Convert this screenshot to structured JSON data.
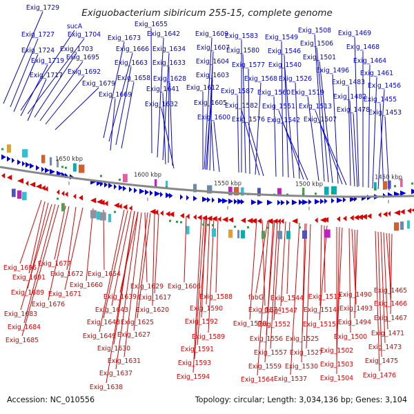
{
  "title": "Exiguobacterium sibiricum 255-15, complete genome",
  "accession": "Accession: NC_010556",
  "topology": "Topology: circular; Length: 3,034,136 bp; Genes: 3,104",
  "colors": {
    "forward": "#0000dd",
    "reverse": "#dd0000",
    "backbone": "#888888"
  },
  "ticks": [
    "1650 kbp",
    "1600 kbp",
    "1550 kbp",
    "1500 kbp",
    "1450 kbp"
  ],
  "upper_labels": [
    [
      "Exig_1729"
    ],
    [
      "Exig_1727",
      "sucA",
      "Exig_1704"
    ],
    [
      "Exig_1724",
      "Exig_1703"
    ],
    [
      "Exig_1719",
      "Exig_1695"
    ],
    [
      "Exig_1717",
      "Exig_1692"
    ],
    [
      "Exig_1679"
    ],
    [
      "Exig_1673",
      "Exig_1666",
      "Exig_1663",
      "Exig_1658",
      "Exig_1669"
    ],
    [
      "Exig_1655",
      "Exig_1642",
      "Exig_1634",
      "Exig_1633",
      "Exig_1628",
      "Exig_1641",
      "Exig_1632"
    ],
    [
      "Exig_1609",
      "Exig_1607",
      "Exig_1604",
      "Exig_1603",
      "Exig_1612",
      "Exig_1605",
      "Exig_1600"
    ],
    [
      "Exig_1583",
      "Exig_1580",
      "Exig_1577",
      "Exig_1568",
      "Exig_1587",
      "Exig_1582",
      "Exig_1576"
    ],
    [
      "Exig_1549",
      "Exig_1546",
      "Exig_1540",
      "Exig_1526",
      "Exig_1560",
      "Exig_1551",
      "Exig_1542"
    ],
    [
      "Exig_1508",
      "Exig_1506",
      "Exig_1501",
      "Exig_1496",
      "Exig_1519",
      "Exig_1513",
      "Exig_1507"
    ],
    [
      "Exig_1469",
      "Exig_1468",
      "Exig_1464",
      "Exig_1461",
      "Exig_1483",
      "Exig_1456",
      "Exig_1482",
      "Exig_1455",
      "Exig_1478",
      "Exig_1453"
    ]
  ],
  "lower_labels": [
    [
      "Exig_1696",
      "Exig_1691",
      "Exig_1689",
      "Exig_1683",
      "Exig_1684",
      "Exig_1685"
    ],
    [
      "Exig_1677",
      "Exig_1672",
      "Exig_1676",
      "Exig_1671"
    ],
    [
      "Exig_1660",
      "Exig_1654"
    ],
    [
      "Exig_1629",
      "Exig_1639",
      "Exig_1643",
      "Exig_1648",
      "Exig_1649",
      "Exig_1630",
      "Exig_1631",
      "Exig_1637",
      "Exig_1638"
    ],
    [
      "Exig_1617",
      "Exig_1620",
      "Exig_1625",
      "Exig_1627"
    ],
    [
      "Exig_1606"
    ],
    [
      "Exig_1588",
      "Exig_1590",
      "Exig_1592",
      "Exig_1589",
      "Exig_1591",
      "Exig_1593",
      "Exig_1594"
    ],
    [
      "Exig_1574",
      "Exig_1578",
      "fabG"
    ],
    [
      "Exig_1544",
      "Exig_1547",
      "Exig_1552",
      "Exig_1556",
      "Exig_1557",
      "Exig_1559",
      "Exig_1564"
    ],
    [
      "Exig_1512",
      "Exig_1514",
      "Exig_1515",
      "Exig_1525",
      "Exig_1527",
      "Exig_1530",
      "Exig_1537"
    ],
    [
      "Exig_1490",
      "Exig_1493",
      "Exig_1494",
      "Exig_1500",
      "Exig_1502",
      "Exig_1503",
      "Exig_1504"
    ],
    [
      "Exig_1465",
      "Exig_1466",
      "Exig_1467",
      "Exig_1471",
      "Exig_1473",
      "Exig_1475",
      "Exig_1476"
    ]
  ]
}
